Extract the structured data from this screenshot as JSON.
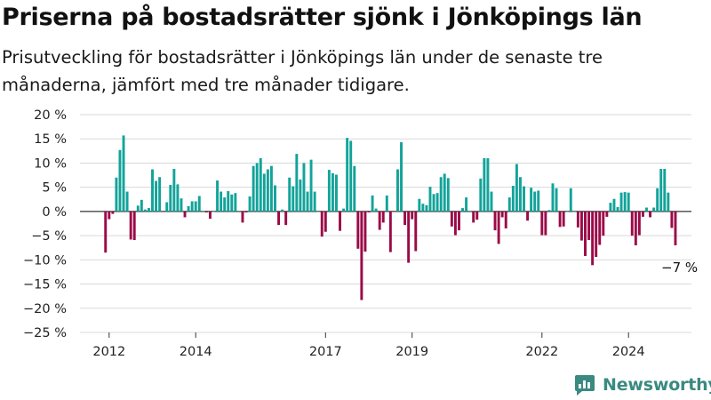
{
  "header": {
    "title": "Priserna på bostadsrätter sjönk i Jönköpings län",
    "subtitle": "Prisutveckling för bostadsrätter i Jönköpings län under de senaste tre månaderna, jämfört med tre månader tidigare."
  },
  "branding": {
    "name": "Newsworthy",
    "icon": "newsworthy-logo-icon",
    "color": "#3a8a80"
  },
  "colors": {
    "positive": "#12a39a",
    "negative": "#9b0a48"
  },
  "chart_data": {
    "type": "bar",
    "title": "Priserna på bostadsrätter sjönk i Jönköpings län",
    "subtitle": "Prisutveckling för bostadsrätter i Jönköpings län under de senaste tre månaderna, jämfört med tre månader tidigare.",
    "xlabel": "",
    "ylabel": "",
    "unit": "%",
    "ylim": [
      -25,
      20
    ],
    "yticks": [
      20,
      15,
      10,
      5,
      0,
      -5,
      -10,
      -15,
      -20,
      -25
    ],
    "ytick_labels": [
      "20 %",
      "15 %",
      "10 %",
      "5 %",
      "0 %",
      "−5 %",
      "−10 %",
      "−15 %",
      "−20 %",
      "−25 %"
    ],
    "xticks": [
      {
        "label": "2012",
        "x": 2012.0
      },
      {
        "label": "2014",
        "x": 2014.0
      },
      {
        "label": "2017",
        "x": 2017.0
      },
      {
        "label": "2019",
        "x": 2019.0
      },
      {
        "label": "2022",
        "x": 2022.0
      },
      {
        "label": "2024",
        "x": 2024.0
      }
    ],
    "start_month": "2011-12",
    "interval": "month",
    "values": [
      -8.5,
      -1.6,
      -0.5,
      7,
      12.7,
      15.7,
      4.1,
      -5.8,
      -5.9,
      1.2,
      2.4,
      0.4,
      0.7,
      8.7,
      6.3,
      7.1,
      -0.1,
      1.9,
      5.5,
      8.8,
      5.6,
      2.7,
      -1.2,
      1.1,
      2.1,
      2.1,
      3.2,
      0.1,
      -0.2,
      -1.5,
      0,
      6.4,
      4.1,
      2.9,
      4.2,
      3.5,
      3.8,
      0.1,
      -2.3,
      -0.2,
      3.1,
      9.4,
      10,
      11,
      7.8,
      8.7,
      9.4,
      5.4,
      -2.8,
      0.4,
      -2.8,
      7,
      5.2,
      11.9,
      6.6,
      10,
      4.1,
      10.7,
      4.1,
      0,
      -5.2,
      -4.2,
      8.6,
      7.9,
      7.6,
      -4,
      0.6,
      15.2,
      14.6,
      9.4,
      -7.7,
      -18.3,
      -8.3,
      -0.2,
      3.3,
      0.6,
      -3.8,
      -2.3,
      3.3,
      -8.4,
      -0.1,
      8.7,
      14.3,
      -2.8,
      -10.6,
      -1.6,
      -8.2,
      2.6,
      1.6,
      1.3,
      5.1,
      3.6,
      3.8,
      7.1,
      7.8,
      6.9,
      -3.1,
      -4.9,
      -3.9,
      0.7,
      2.9,
      0.1,
      -2.3,
      -1.7,
      6.8,
      11,
      11,
      4.1,
      -3.9,
      -6.7,
      -1.2,
      -3.5,
      2.9,
      5.3,
      9.8,
      7.1,
      5.2,
      -1.9,
      4.9,
      4.1,
      4.3,
      -4.9,
      -4.9,
      0.3,
      5.8,
      4.8,
      -3.2,
      -3.1,
      0,
      4.8,
      0,
      -3.3,
      -6,
      -9.2,
      -5.9,
      -11.1,
      -9.4,
      -6.9,
      -5,
      -1.1,
      1.8,
      2.6,
      0.9,
      3.9,
      4,
      3.9,
      -5,
      -7,
      -4.9,
      -1.1,
      0.8,
      -1.2,
      0.8,
      4.8,
      8.8,
      8.8,
      3.9,
      -3.4,
      -7
    ],
    "annotations": [
      {
        "text": "−7 %",
        "x": "2025-03",
        "y": -7,
        "placement": "below-right"
      }
    ],
    "grid": {
      "y": true,
      "x": false
    },
    "legend": "none"
  }
}
